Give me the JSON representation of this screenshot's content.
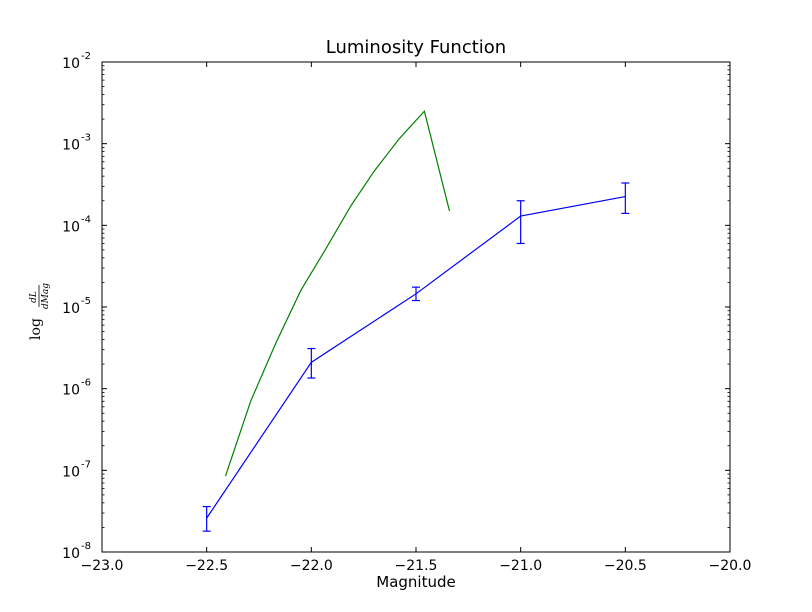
{
  "chart_data": {
    "type": "line",
    "title": "Luminosity Function",
    "xlabel": "Magnitude",
    "ylabel": {
      "prefix": "log",
      "numerator": "dL",
      "denominator": "dMag"
    },
    "xlim": [
      -23.0,
      -20.0
    ],
    "ylim": [
      1e-08,
      0.01
    ],
    "yscale": "log",
    "grid": false,
    "x_ticks": [
      {
        "value": -23.0,
        "label": "−23.0"
      },
      {
        "value": -22.5,
        "label": "−22.5"
      },
      {
        "value": -22.0,
        "label": "−22.0"
      },
      {
        "value": -21.5,
        "label": "−21.5"
      },
      {
        "value": -21.0,
        "label": "−21.0"
      },
      {
        "value": -20.5,
        "label": "−20.5"
      },
      {
        "value": -20.0,
        "label": "−20.0"
      }
    ],
    "y_ticks": [
      {
        "value": 1e-08,
        "base": "10",
        "exp": "-8"
      },
      {
        "value": 1e-07,
        "base": "10",
        "exp": "-7"
      },
      {
        "value": 1e-06,
        "base": "10",
        "exp": "-6"
      },
      {
        "value": 1e-05,
        "base": "10",
        "exp": "-5"
      },
      {
        "value": 0.0001,
        "base": "10",
        "exp": "-4"
      },
      {
        "value": 0.001,
        "base": "10",
        "exp": "-3"
      },
      {
        "value": 0.01,
        "base": "10",
        "exp": "-2"
      }
    ],
    "series": [
      {
        "color": "#0000ff",
        "x": [
          -22.5,
          -22.0,
          -21.5,
          -21.0,
          -20.5
        ],
        "y": [
          2.6e-08,
          2.1e-06,
          1.45e-05,
          0.00013,
          0.000225
        ],
        "err_low": [
          1.8e-08,
          1.35e-06,
          1.2e-05,
          6e-05,
          0.00014
        ],
        "err_high": [
          3.6e-08,
          3.1e-06,
          1.75e-05,
          0.0002,
          0.00033
        ]
      },
      {
        "color": "#008000",
        "x": [
          -22.41,
          -22.29,
          -22.17,
          -22.05,
          -21.93,
          -21.81,
          -21.7,
          -21.58,
          -21.46,
          -21.34
        ],
        "y": [
          8.5e-08,
          7e-07,
          3.6e-06,
          1.6e-05,
          5.2e-05,
          0.000175,
          0.00046,
          0.00115,
          0.0025,
          0.00015
        ]
      }
    ]
  }
}
